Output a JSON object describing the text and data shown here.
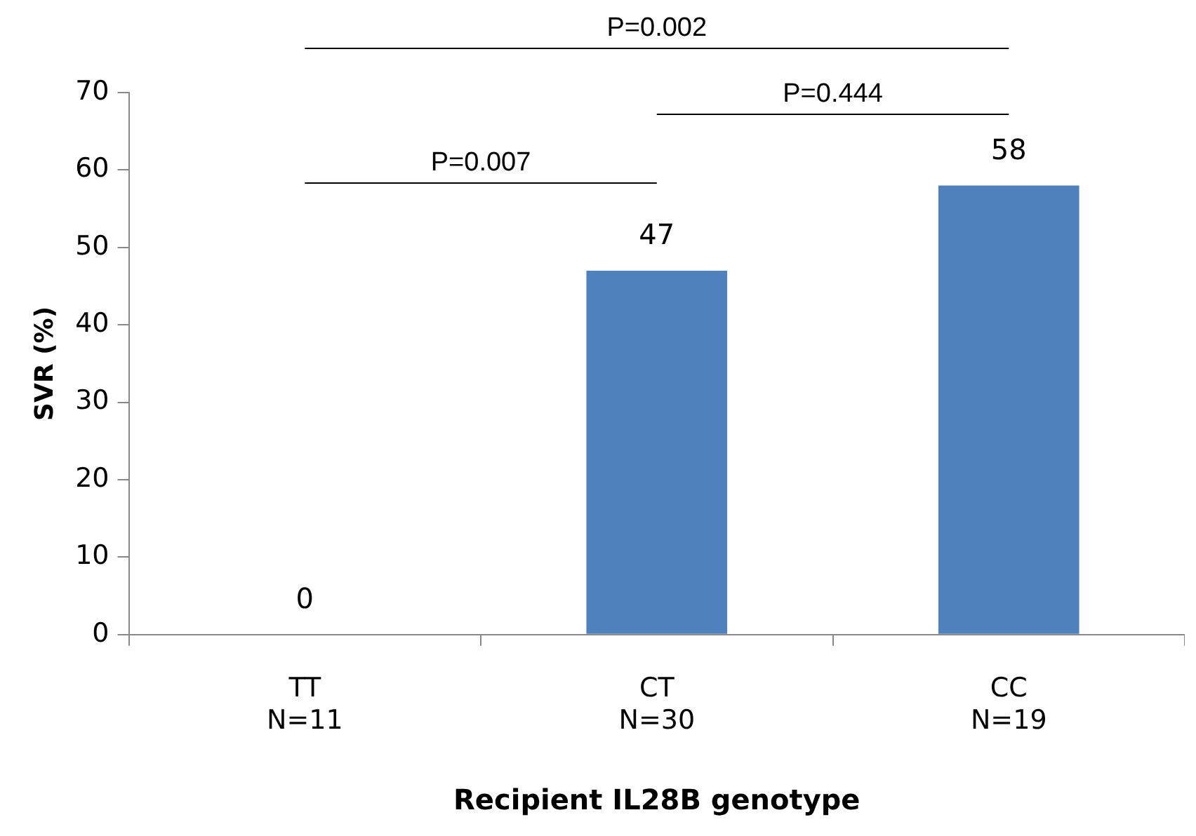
{
  "chart_data": {
    "type": "bar",
    "xlabel": "Recipient IL28B genotype",
    "ylabel": "SVR (%)",
    "categories": [
      "TT",
      "CT",
      "CC"
    ],
    "values": [
      0,
      47,
      58
    ],
    "color": "#4f81bd",
    "data_labels": true,
    "ylim": [
      0,
      70
    ],
    "yticks": [
      0,
      10,
      20,
      30,
      40,
      50,
      60,
      70
    ],
    "grid": false,
    "legend": false,
    "annotations": [
      "N=11",
      "N=30",
      "N=19",
      "P=0.002",
      "P=0.444",
      "P=0.007"
    ]
  }
}
